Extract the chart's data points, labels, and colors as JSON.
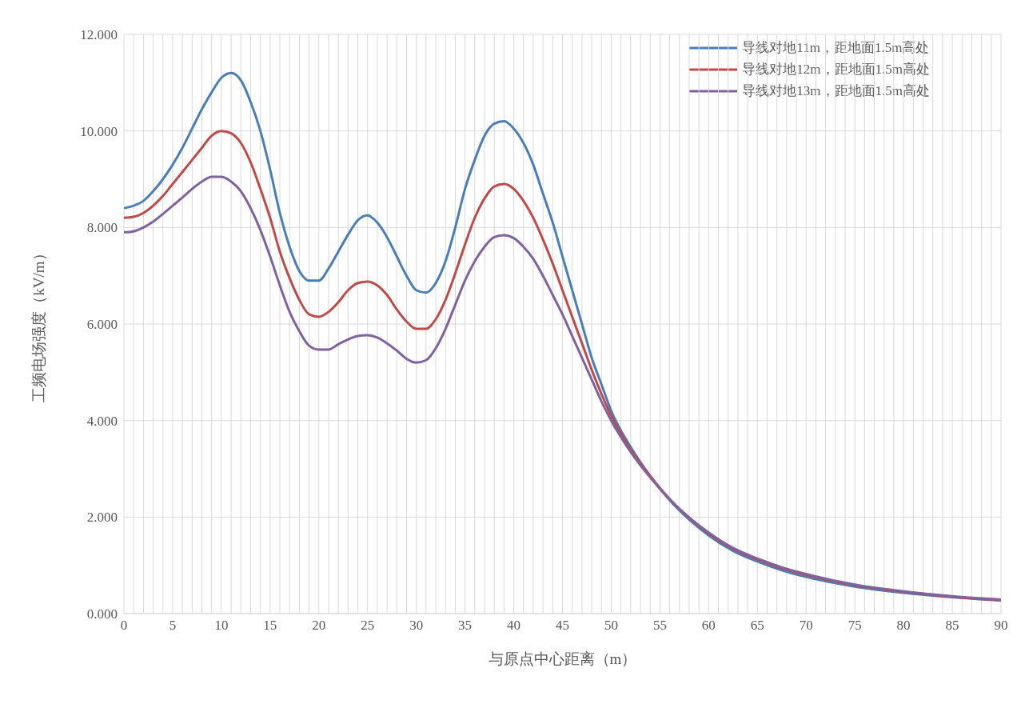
{
  "chart_data": {
    "type": "line",
    "xlabel": "与原点中心距离（m）",
    "ylabel": "工频电场强度（kV/m）",
    "x": [
      0,
      1,
      2,
      3,
      4,
      5,
      6,
      7,
      8,
      9,
      10,
      11,
      12,
      13,
      14,
      15,
      16,
      17,
      18,
      19,
      20,
      21,
      22,
      23,
      24,
      25,
      26,
      27,
      28,
      29,
      30,
      31,
      32,
      33,
      34,
      35,
      36,
      37,
      38,
      39,
      40,
      41,
      42,
      43,
      44,
      45,
      46,
      47,
      48,
      49,
      50,
      52,
      54,
      56,
      58,
      60,
      62.5,
      65,
      67.5,
      70,
      75,
      80,
      85,
      90
    ],
    "series": [
      {
        "name": "导线对地11m，距地面1.5m高处",
        "color": "#4a7ebb",
        "values": [
          8.4,
          8.45,
          8.55,
          8.75,
          9.0,
          9.3,
          9.65,
          10.05,
          10.45,
          10.8,
          11.1,
          11.2,
          11.05,
          10.6,
          10.0,
          9.2,
          8.3,
          7.6,
          7.1,
          6.9,
          6.9,
          7.15,
          7.5,
          7.85,
          8.15,
          8.25,
          8.1,
          7.8,
          7.4,
          7.0,
          6.7,
          6.65,
          6.85,
          7.3,
          8.0,
          8.8,
          9.4,
          9.9,
          10.15,
          10.2,
          10.05,
          9.75,
          9.3,
          8.7,
          8.1,
          7.4,
          6.7,
          6.0,
          5.3,
          4.75,
          4.2,
          3.45,
          2.85,
          2.35,
          1.95,
          1.62,
          1.3,
          1.08,
          0.9,
          0.76,
          0.56,
          0.43,
          0.34,
          0.27
        ]
      },
      {
        "name": "导线对地12m，距地面1.5m高处",
        "color": "#be4b48",
        "values": [
          8.2,
          8.22,
          8.3,
          8.45,
          8.65,
          8.9,
          9.15,
          9.4,
          9.65,
          9.9,
          10.0,
          9.95,
          9.75,
          9.35,
          8.8,
          8.2,
          7.5,
          6.95,
          6.5,
          6.2,
          6.15,
          6.25,
          6.45,
          6.7,
          6.85,
          6.88,
          6.8,
          6.6,
          6.3,
          6.05,
          5.9,
          5.9,
          6.1,
          6.5,
          7.05,
          7.65,
          8.2,
          8.6,
          8.85,
          8.9,
          8.8,
          8.55,
          8.2,
          7.75,
          7.25,
          6.7,
          6.15,
          5.6,
          5.05,
          4.55,
          4.1,
          3.4,
          2.85,
          2.37,
          1.98,
          1.66,
          1.34,
          1.12,
          0.94,
          0.8,
          0.59,
          0.45,
          0.35,
          0.28
        ]
      },
      {
        "name": "导线对地13m，距地面1.5m高处",
        "color": "#7e62a1",
        "values": [
          7.9,
          7.92,
          8.0,
          8.12,
          8.28,
          8.45,
          8.62,
          8.8,
          8.95,
          9.05,
          9.05,
          8.95,
          8.75,
          8.4,
          7.95,
          7.4,
          6.8,
          6.25,
          5.85,
          5.55,
          5.47,
          5.47,
          5.58,
          5.68,
          5.75,
          5.77,
          5.72,
          5.6,
          5.45,
          5.28,
          5.2,
          5.25,
          5.5,
          5.9,
          6.4,
          6.9,
          7.3,
          7.6,
          7.8,
          7.84,
          7.78,
          7.6,
          7.35,
          7.0,
          6.6,
          6.2,
          5.75,
          5.3,
          4.85,
          4.4,
          4.0,
          3.35,
          2.82,
          2.37,
          1.99,
          1.68,
          1.36,
          1.14,
          0.96,
          0.82,
          0.6,
          0.46,
          0.36,
          0.29
        ]
      }
    ],
    "xlim": [
      0,
      90
    ],
    "xticks": [
      0,
      5,
      10,
      15,
      20,
      25,
      30,
      35,
      40,
      45,
      50,
      55,
      60,
      65,
      70,
      75,
      80,
      85,
      90
    ],
    "ylim": [
      0,
      12
    ],
    "yticks": [
      {
        "value": 0,
        "label": "0.000"
      },
      {
        "value": 2,
        "label": "2.000"
      },
      {
        "value": 4,
        "label": "4.000"
      },
      {
        "value": 6,
        "label": "6.000"
      },
      {
        "value": 8,
        "label": "8.000"
      },
      {
        "value": 10,
        "label": "10.000"
      },
      {
        "value": 12,
        "label": "12.000"
      }
    ],
    "grid": true,
    "legend": "top right",
    "marker": "none",
    "line_style": "solid"
  }
}
